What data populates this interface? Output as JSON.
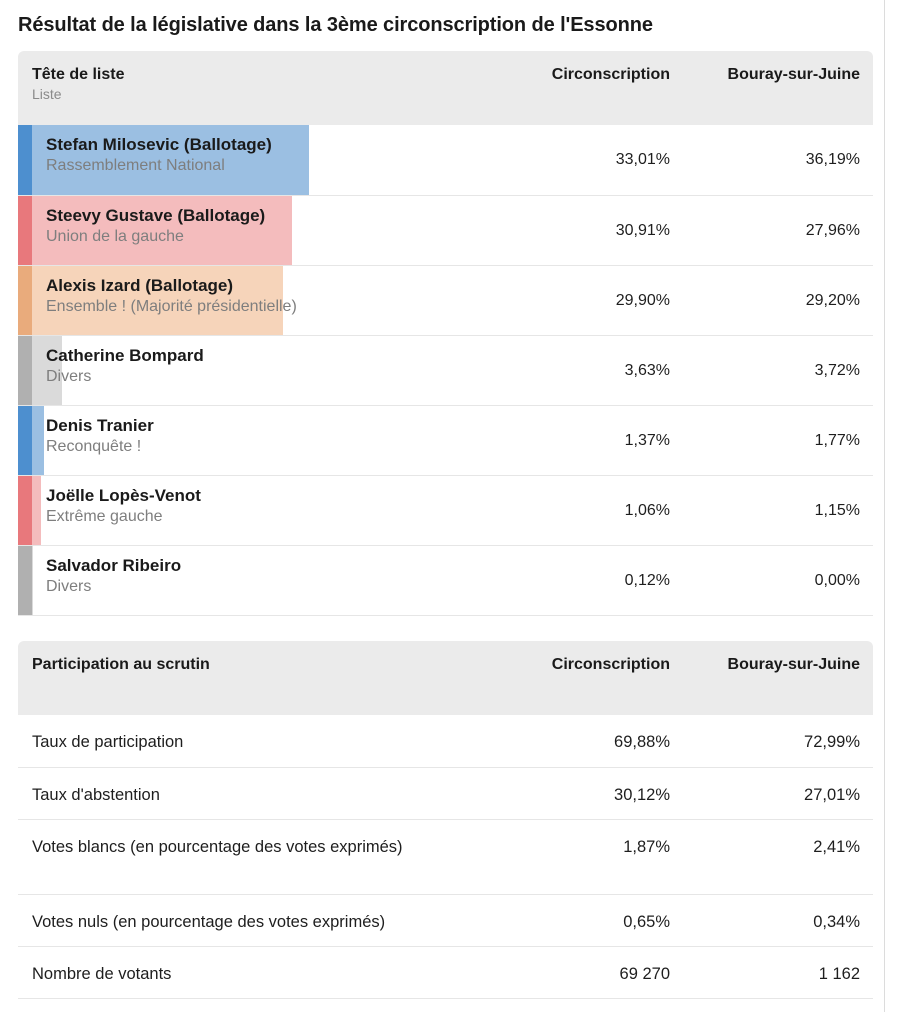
{
  "title": "Résultat de la législative dans la 3ème circonscription de l'Essonne",
  "results": {
    "header": {
      "col1": "Tête de liste",
      "col1_sub": "Liste",
      "col2": "Circonscription",
      "col3": "Bouray-sur-Juine"
    },
    "rows": [
      {
        "name": "Stefan Milosevic (Ballotage)",
        "list": "Rassemblement National",
        "circ": "33,01%",
        "commune": "36,19%",
        "share": 0.3301,
        "color": "#4d8fcf",
        "fill": "#9bbfe2"
      },
      {
        "name": "Steevy Gustave (Ballotage)",
        "list": "Union de la gauche",
        "circ": "30,91%",
        "commune": "27,96%",
        "share": 0.3091,
        "color": "#e8787c",
        "fill": "#f4bcbd"
      },
      {
        "name": "Alexis Izard (Ballotage)",
        "list": "Ensemble ! (Majorité présidentielle)",
        "circ": "29,90%",
        "commune": "29,20%",
        "share": 0.299,
        "color": "#e9ab7c",
        "fill": "#f6d4ba"
      },
      {
        "name": "Catherine Bompard",
        "list": "Divers",
        "circ": "3,63%",
        "commune": "3,72%",
        "share": 0.0363,
        "color": "#b0b0b0",
        "fill": "#dadada"
      },
      {
        "name": "Denis Tranier",
        "list": "Reconquête !",
        "circ": "1,37%",
        "commune": "1,77%",
        "share": 0.0137,
        "color": "#4d8fcf",
        "fill": "#9bbfe2"
      },
      {
        "name": "Joëlle Lopès-Venot",
        "list": "Extrême gauche",
        "circ": "1,06%",
        "commune": "1,15%",
        "share": 0.0106,
        "color": "#e8787c",
        "fill": "#f4bcbd"
      },
      {
        "name": "Salvador Ribeiro",
        "list": "Divers",
        "circ": "0,12%",
        "commune": "0,00%",
        "share": 0.0012,
        "color": "#b0b0b0",
        "fill": "#dadada"
      }
    ]
  },
  "participation": {
    "header": {
      "col1": "Participation au scrutin",
      "col2": "Circonscription",
      "col3": "Bouray-sur-Juine"
    },
    "rows": [
      {
        "label": "Taux de participation",
        "circ": "69,88%",
        "commune": "72,99%"
      },
      {
        "label": "Taux d'abstention",
        "circ": "30,12%",
        "commune": "27,01%"
      },
      {
        "label": "Votes blancs (en pourcentage des votes exprimés)",
        "circ": "1,87%",
        "commune": "2,41%"
      },
      {
        "label": "Votes nuls (en pourcentage des votes exprimés)",
        "circ": "0,65%",
        "commune": "0,34%"
      },
      {
        "label": "Nombre de votants",
        "circ": "69 270",
        "commune": "1 162"
      }
    ]
  }
}
